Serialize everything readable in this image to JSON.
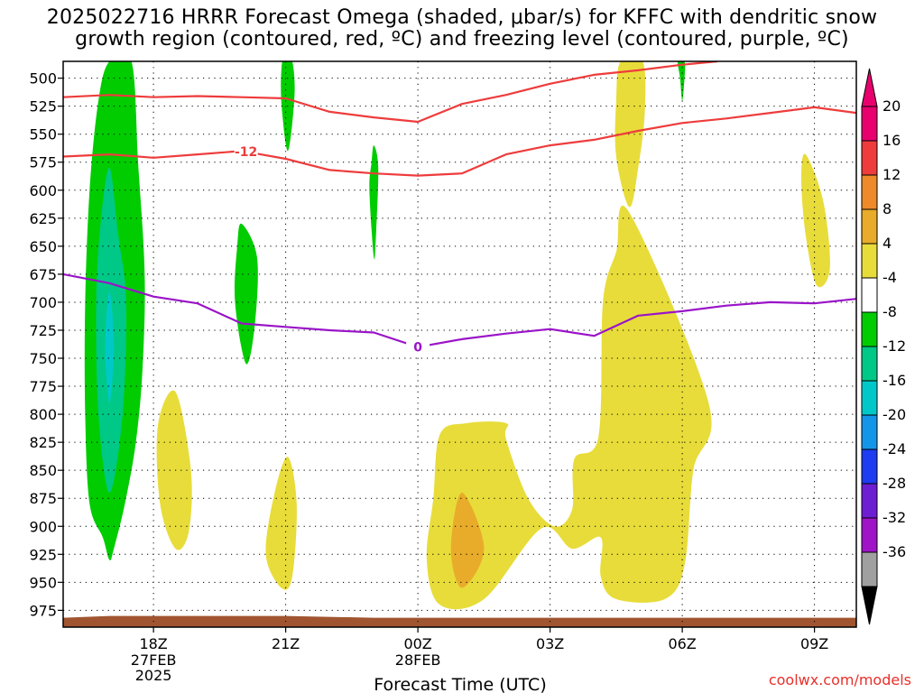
{
  "title_line1": "2025022716 HRRR Forecast Omega (shaded, μbar/s) for KFFC with dendritic snow",
  "title_line2": "growth region (contoured, red, ºC) and freezing level (contoured, purple, ºC)",
  "credit": "coolwx.com/models",
  "chart_data": {
    "type": "contour",
    "xlabel": "Forecast Time (UTC)",
    "x_ticks": [
      {
        "label": "18Z",
        "sub": [
          "27FEB",
          "2025"
        ],
        "hour": 2
      },
      {
        "label": "21Z",
        "sub": [],
        "hour": 5
      },
      {
        "label": "00Z",
        "sub": [
          "28FEB"
        ],
        "hour": 8
      },
      {
        "label": "03Z",
        "sub": [],
        "hour": 11
      },
      {
        "label": "06Z",
        "sub": [],
        "hour": 14
      },
      {
        "label": "09Z",
        "sub": [],
        "hour": 17
      }
    ],
    "xlim_hours": [
      -0.05,
      17.95
    ],
    "y_ticks": [
      500,
      525,
      550,
      575,
      600,
      625,
      650,
      675,
      700,
      725,
      750,
      775,
      800,
      825,
      850,
      875,
      900,
      925,
      950,
      975
    ],
    "ylim_mb": [
      485,
      990
    ],
    "grid": true,
    "colorbar": {
      "labels": [
        "20",
        "16",
        "12",
        "8",
        "4",
        "-4",
        "-8",
        "-12",
        "-16",
        "-20",
        "-24",
        "-28",
        "-32",
        "-36"
      ],
      "colors": [
        "#e8006e",
        "#ee3c3c",
        "#ee8a2a",
        "#e8ac2a",
        "#e8dc3a",
        "#ffffff",
        "#00cc00",
        "#00c887",
        "#00c8c8",
        "#1496e8",
        "#1e3cf0",
        "#6e1ed2",
        "#a014c8",
        "#a0a0a0"
      ],
      "top_color": "#e8006e",
      "bottom_color": "#000000"
    },
    "contours": [
      {
        "name": "-12",
        "color": "#ee3c3c",
        "label_at_hour": 4.1,
        "points": [
          [
            -0.05,
            570
          ],
          [
            1,
            568
          ],
          [
            2,
            571
          ],
          [
            3,
            568
          ],
          [
            4,
            565
          ],
          [
            5,
            572
          ],
          [
            6,
            582
          ],
          [
            7,
            585
          ],
          [
            8,
            587
          ],
          [
            9,
            585
          ],
          [
            10,
            568
          ],
          [
            11,
            560
          ],
          [
            12,
            555
          ],
          [
            13,
            547
          ],
          [
            14,
            540
          ],
          [
            15,
            536
          ],
          [
            16,
            531
          ],
          [
            17,
            526
          ],
          [
            17.95,
            531
          ]
        ]
      },
      {
        "name": "",
        "color": "#ee3c3c",
        "label_at_hour": null,
        "points": [
          [
            -0.05,
            517
          ],
          [
            1,
            515
          ],
          [
            2,
            517
          ],
          [
            3,
            516
          ],
          [
            4,
            517
          ],
          [
            5,
            518
          ],
          [
            6,
            530
          ],
          [
            7,
            535
          ],
          [
            8,
            539
          ],
          [
            9,
            523
          ],
          [
            10,
            515
          ],
          [
            11,
            505
          ],
          [
            12,
            497
          ],
          [
            13,
            493
          ],
          [
            14,
            488
          ],
          [
            14.8,
            485
          ]
        ]
      },
      {
        "name": "0",
        "color": "#9a14c8",
        "label_at_hour": 8,
        "points": [
          [
            -0.05,
            675
          ],
          [
            1,
            683
          ],
          [
            2,
            695
          ],
          [
            3,
            701
          ],
          [
            4,
            719
          ],
          [
            5,
            722
          ],
          [
            6,
            725
          ],
          [
            7,
            727
          ],
          [
            8,
            740
          ],
          [
            9,
            733
          ],
          [
            10,
            728
          ],
          [
            11,
            724
          ],
          [
            12,
            730
          ],
          [
            13,
            712
          ],
          [
            14,
            708
          ],
          [
            15,
            703
          ],
          [
            16,
            700
          ],
          [
            17,
            701
          ],
          [
            17.95,
            697
          ]
        ]
      }
    ],
    "shaded_regions": [
      {
        "value_class": "-4 to -8",
        "color": "#00cc00",
        "points": [
          [
            1,
            485
          ],
          [
            1.5,
            485
          ],
          [
            1.65,
            575
          ],
          [
            1.8,
            675
          ],
          [
            1.75,
            760
          ],
          [
            1.6,
            825
          ],
          [
            1.35,
            880
          ],
          [
            1.1,
            920
          ],
          [
            1,
            930
          ],
          [
            0.85,
            910
          ],
          [
            0.55,
            880
          ],
          [
            0.45,
            800
          ],
          [
            0.45,
            700
          ],
          [
            0.55,
            600
          ],
          [
            0.75,
            520
          ]
        ]
      },
      {
        "value_class": "-8 to -12",
        "color": "#00c887",
        "points": [
          [
            1,
            580
          ],
          [
            1.2,
            640
          ],
          [
            1.38,
            700
          ],
          [
            1.3,
            800
          ],
          [
            1,
            870
          ],
          [
            0.75,
            800
          ],
          [
            0.7,
            700
          ],
          [
            0.8,
            630
          ]
        ]
      },
      {
        "value_class": "-12 to -16",
        "color": "#00c8c8",
        "points": [
          [
            1,
            690
          ],
          [
            1.1,
            740
          ],
          [
            1,
            790
          ],
          [
            0.9,
            740
          ]
        ]
      },
      {
        "value_class": "-4 to -8",
        "color": "#00cc00",
        "points": [
          [
            4,
            630
          ],
          [
            4.35,
            660
          ],
          [
            4.3,
            720
          ],
          [
            4.1,
            755
          ],
          [
            3.85,
            700
          ],
          [
            3.9,
            650
          ]
        ]
      },
      {
        "value_class": "-4 to -8",
        "color": "#00cc00",
        "points": [
          [
            5.02,
            485
          ],
          [
            5.15,
            485
          ],
          [
            5.2,
            515
          ],
          [
            5.05,
            565
          ],
          [
            4.9,
            520
          ],
          [
            4.92,
            485
          ]
        ]
      },
      {
        "value_class": "-4 to -8",
        "color": "#00cc00",
        "points": [
          [
            7,
            560
          ],
          [
            7.1,
            580
          ],
          [
            7.05,
            640
          ],
          [
            7,
            660
          ],
          [
            6.9,
            600
          ],
          [
            6.95,
            575
          ]
        ]
      },
      {
        "value_class": "-4 to -8",
        "color": "#00cc00",
        "points": [
          [
            13.9,
            485
          ],
          [
            14.05,
            485
          ],
          [
            14.05,
            500
          ],
          [
            14,
            520
          ],
          [
            13.95,
            500
          ]
        ]
      },
      {
        "value_class": "4 to 8",
        "color": "#e8dc3a",
        "points": [
          [
            12.6,
            485
          ],
          [
            13.1,
            485
          ],
          [
            13.15,
            530
          ],
          [
            13,
            580
          ],
          [
            12.8,
            615
          ],
          [
            12.5,
            570
          ],
          [
            12.5,
            520
          ]
        ]
      },
      {
        "value_class": "4 to 8",
        "color": "#e8dc3a",
        "points": [
          [
            12.8,
            620
          ],
          [
            14.6,
            790
          ],
          [
            14.25,
            850
          ],
          [
            14.05,
            935
          ],
          [
            13.6,
            965
          ],
          [
            12.5,
            965
          ],
          [
            12.15,
            945
          ],
          [
            12.15,
            910
          ],
          [
            11.5,
            920
          ],
          [
            10.8,
            902
          ],
          [
            9.5,
            965
          ],
          [
            8.5,
            970
          ],
          [
            8.2,
            930
          ],
          [
            8.35,
            875
          ],
          [
            8.5,
            818
          ],
          [
            9.1,
            808
          ],
          [
            10,
            808
          ],
          [
            10,
            822
          ],
          [
            10.5,
            875
          ],
          [
            11.1,
            900
          ],
          [
            11.5,
            885
          ],
          [
            11.55,
            840
          ],
          [
            12.1,
            820
          ],
          [
            12.2,
            700
          ],
          [
            12.5,
            655
          ]
        ]
      },
      {
        "value_class": "4 to 8",
        "color": "#e8dc3a",
        "points": [
          [
            2.5,
            780
          ],
          [
            2.85,
            850
          ],
          [
            2.8,
            905
          ],
          [
            2.5,
            920
          ],
          [
            2.15,
            880
          ],
          [
            2.1,
            810
          ]
        ]
      },
      {
        "value_class": "4 to 8",
        "color": "#e8dc3a",
        "points": [
          [
            5.05,
            838
          ],
          [
            5.25,
            880
          ],
          [
            5.15,
            945
          ],
          [
            4.9,
            955
          ],
          [
            4.55,
            925
          ],
          [
            4.75,
            870
          ]
        ]
      },
      {
        "value_class": "4 to 8",
        "color": "#e8dc3a",
        "points": [
          [
            16.8,
            568
          ],
          [
            17.2,
            610
          ],
          [
            17.35,
            670
          ],
          [
            17.05,
            685
          ],
          [
            16.8,
            640
          ],
          [
            16.7,
            590
          ]
        ]
      },
      {
        "value_class": "8 to 12",
        "color": "#e8ac2a",
        "points": [
          [
            9,
            870
          ],
          [
            9.5,
            920
          ],
          [
            9,
            955
          ],
          [
            8.75,
            920
          ]
        ]
      }
    ],
    "terrain": {
      "color": "#a05530",
      "top_mb": 980
    }
  }
}
